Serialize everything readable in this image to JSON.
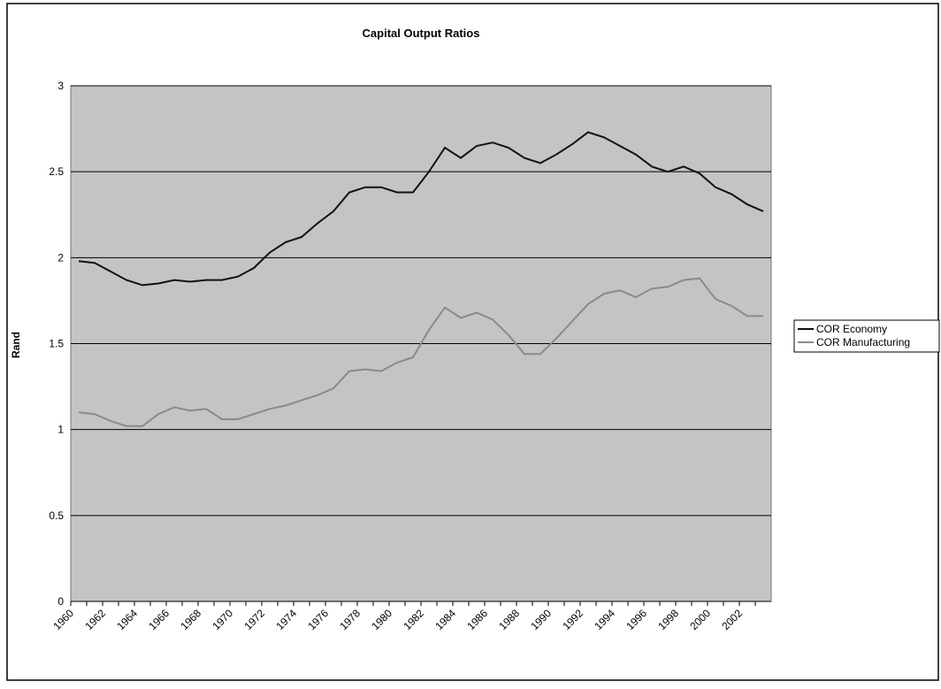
{
  "chart_data": {
    "type": "line",
    "title": "Capital Output Ratios",
    "y_label": "Rand",
    "categories": [
      1960,
      null,
      1962,
      null,
      1964,
      null,
      1966,
      null,
      1968,
      null,
      1970,
      null,
      1972,
      null,
      1974,
      null,
      1976,
      null,
      1978,
      null,
      1980,
      null,
      1982,
      null,
      1984,
      null,
      1986,
      null,
      1988,
      null,
      1990,
      null,
      1992,
      null,
      1994,
      null,
      1996,
      null,
      1998,
      null,
      2000,
      null,
      2002,
      null
    ],
    "series": [
      {
        "name": "COR Economy",
        "color": "#111111",
        "values": [
          1.98,
          1.97,
          1.92,
          1.87,
          1.84,
          1.85,
          1.87,
          1.86,
          1.87,
          1.87,
          1.89,
          1.94,
          2.03,
          2.09,
          2.12,
          2.2,
          2.27,
          2.38,
          2.41,
          2.41,
          2.38,
          2.38,
          2.5,
          2.64,
          2.58,
          2.65,
          2.67,
          2.64,
          2.58,
          2.55,
          2.6,
          2.66,
          2.73,
          2.7,
          2.65,
          2.6,
          2.53,
          2.5,
          2.53,
          2.49,
          2.41,
          2.37,
          2.31,
          2.27
        ]
      },
      {
        "name": "COR Manufacturing",
        "color": "#8a8a8a",
        "values": [
          1.1,
          1.09,
          1.05,
          1.02,
          1.02,
          1.09,
          1.13,
          1.11,
          1.12,
          1.06,
          1.06,
          1.09,
          1.12,
          1.14,
          1.17,
          1.2,
          1.24,
          1.34,
          1.35,
          1.34,
          1.39,
          1.42,
          1.58,
          1.71,
          1.65,
          1.68,
          1.64,
          1.55,
          1.44,
          1.44,
          1.53,
          1.63,
          1.73,
          1.79,
          1.81,
          1.77,
          1.82,
          1.83,
          1.87,
          1.88,
          1.76,
          1.72,
          1.66,
          1.66
        ]
      }
    ],
    "ylim": [
      0,
      3
    ],
    "yticks": [
      0,
      0.5,
      1,
      1.5,
      2,
      2.5,
      3
    ],
    "grid": true,
    "legend": "right"
  }
}
